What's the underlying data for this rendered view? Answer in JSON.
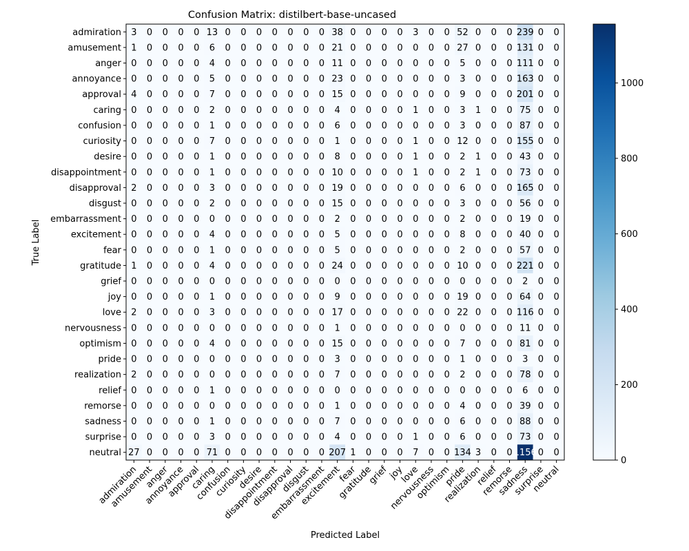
{
  "chart_data": {
    "type": "heatmap",
    "title": "Confusion Matrix: distilbert-base-uncased",
    "xlabel": "Predicted Label",
    "ylabel": "True Label",
    "labels": [
      "admiration",
      "amusement",
      "anger",
      "annoyance",
      "approval",
      "caring",
      "confusion",
      "curiosity",
      "desire",
      "disappointment",
      "disapproval",
      "disgust",
      "embarrassment",
      "excitement",
      "fear",
      "gratitude",
      "grief",
      "joy",
      "love",
      "nervousness",
      "optimism",
      "pride",
      "realization",
      "relief",
      "remorse",
      "sadness",
      "surprise",
      "neutral"
    ],
    "matrix": [
      [
        3,
        0,
        0,
        0,
        0,
        13,
        0,
        0,
        0,
        0,
        0,
        0,
        0,
        38,
        0,
        0,
        0,
        0,
        3,
        0,
        0,
        52,
        0,
        0,
        0,
        239,
        0,
        0
      ],
      [
        1,
        0,
        0,
        0,
        0,
        6,
        0,
        0,
        0,
        0,
        0,
        0,
        0,
        21,
        0,
        0,
        0,
        0,
        0,
        0,
        0,
        27,
        0,
        0,
        0,
        131,
        0,
        0
      ],
      [
        0,
        0,
        0,
        0,
        0,
        4,
        0,
        0,
        0,
        0,
        0,
        0,
        0,
        11,
        0,
        0,
        0,
        0,
        0,
        0,
        0,
        5,
        0,
        0,
        0,
        111,
        0,
        0
      ],
      [
        0,
        0,
        0,
        0,
        0,
        5,
        0,
        0,
        0,
        0,
        0,
        0,
        0,
        23,
        0,
        0,
        0,
        0,
        0,
        0,
        0,
        3,
        0,
        0,
        0,
        163,
        0,
        0
      ],
      [
        4,
        0,
        0,
        0,
        0,
        7,
        0,
        0,
        0,
        0,
        0,
        0,
        0,
        15,
        0,
        0,
        0,
        0,
        0,
        0,
        0,
        9,
        0,
        0,
        0,
        201,
        0,
        0
      ],
      [
        0,
        0,
        0,
        0,
        0,
        2,
        0,
        0,
        0,
        0,
        0,
        0,
        0,
        4,
        0,
        0,
        0,
        0,
        1,
        0,
        0,
        3,
        1,
        0,
        0,
        75,
        0,
        0
      ],
      [
        0,
        0,
        0,
        0,
        0,
        1,
        0,
        0,
        0,
        0,
        0,
        0,
        0,
        6,
        0,
        0,
        0,
        0,
        0,
        0,
        0,
        3,
        0,
        0,
        0,
        87,
        0,
        0
      ],
      [
        0,
        0,
        0,
        0,
        0,
        7,
        0,
        0,
        0,
        0,
        0,
        0,
        0,
        1,
        0,
        0,
        0,
        0,
        1,
        0,
        0,
        12,
        0,
        0,
        0,
        155,
        0,
        0
      ],
      [
        0,
        0,
        0,
        0,
        0,
        1,
        0,
        0,
        0,
        0,
        0,
        0,
        0,
        8,
        0,
        0,
        0,
        0,
        1,
        0,
        0,
        2,
        1,
        0,
        0,
        43,
        0,
        0
      ],
      [
        0,
        0,
        0,
        0,
        0,
        1,
        0,
        0,
        0,
        0,
        0,
        0,
        0,
        10,
        0,
        0,
        0,
        0,
        1,
        0,
        0,
        2,
        1,
        0,
        0,
        73,
        0,
        0
      ],
      [
        2,
        0,
        0,
        0,
        0,
        3,
        0,
        0,
        0,
        0,
        0,
        0,
        0,
        19,
        0,
        0,
        0,
        0,
        0,
        0,
        0,
        6,
        0,
        0,
        0,
        165,
        0,
        0
      ],
      [
        0,
        0,
        0,
        0,
        0,
        2,
        0,
        0,
        0,
        0,
        0,
        0,
        0,
        15,
        0,
        0,
        0,
        0,
        0,
        0,
        0,
        3,
        0,
        0,
        0,
        56,
        0,
        0
      ],
      [
        0,
        0,
        0,
        0,
        0,
        0,
        0,
        0,
        0,
        0,
        0,
        0,
        0,
        2,
        0,
        0,
        0,
        0,
        0,
        0,
        0,
        2,
        0,
        0,
        0,
        19,
        0,
        0
      ],
      [
        0,
        0,
        0,
        0,
        0,
        4,
        0,
        0,
        0,
        0,
        0,
        0,
        0,
        5,
        0,
        0,
        0,
        0,
        0,
        0,
        0,
        8,
        0,
        0,
        0,
        40,
        0,
        0
      ],
      [
        0,
        0,
        0,
        0,
        0,
        1,
        0,
        0,
        0,
        0,
        0,
        0,
        0,
        5,
        0,
        0,
        0,
        0,
        0,
        0,
        0,
        2,
        0,
        0,
        0,
        57,
        0,
        0
      ],
      [
        1,
        0,
        0,
        0,
        0,
        4,
        0,
        0,
        0,
        0,
        0,
        0,
        0,
        24,
        0,
        0,
        0,
        0,
        0,
        0,
        0,
        10,
        0,
        0,
        0,
        221,
        0,
        0
      ],
      [
        0,
        0,
        0,
        0,
        0,
        0,
        0,
        0,
        0,
        0,
        0,
        0,
        0,
        0,
        0,
        0,
        0,
        0,
        0,
        0,
        0,
        0,
        0,
        0,
        0,
        2,
        0,
        0
      ],
      [
        0,
        0,
        0,
        0,
        0,
        1,
        0,
        0,
        0,
        0,
        0,
        0,
        0,
        9,
        0,
        0,
        0,
        0,
        0,
        0,
        0,
        19,
        0,
        0,
        0,
        64,
        0,
        0
      ],
      [
        2,
        0,
        0,
        0,
        0,
        3,
        0,
        0,
        0,
        0,
        0,
        0,
        0,
        17,
        0,
        0,
        0,
        0,
        0,
        0,
        0,
        22,
        0,
        0,
        0,
        116,
        0,
        0
      ],
      [
        0,
        0,
        0,
        0,
        0,
        0,
        0,
        0,
        0,
        0,
        0,
        0,
        0,
        1,
        0,
        0,
        0,
        0,
        0,
        0,
        0,
        0,
        0,
        0,
        0,
        11,
        0,
        0
      ],
      [
        0,
        0,
        0,
        0,
        0,
        4,
        0,
        0,
        0,
        0,
        0,
        0,
        0,
        15,
        0,
        0,
        0,
        0,
        0,
        0,
        0,
        7,
        0,
        0,
        0,
        81,
        0,
        0
      ],
      [
        0,
        0,
        0,
        0,
        0,
        0,
        0,
        0,
        0,
        0,
        0,
        0,
        0,
        3,
        0,
        0,
        0,
        0,
        0,
        0,
        0,
        1,
        0,
        0,
        0,
        3,
        0,
        0
      ],
      [
        2,
        0,
        0,
        0,
        0,
        0,
        0,
        0,
        0,
        0,
        0,
        0,
        0,
        7,
        0,
        0,
        0,
        0,
        0,
        0,
        0,
        2,
        0,
        0,
        0,
        78,
        0,
        0
      ],
      [
        0,
        0,
        0,
        0,
        0,
        1,
        0,
        0,
        0,
        0,
        0,
        0,
        0,
        0,
        0,
        0,
        0,
        0,
        0,
        0,
        0,
        0,
        0,
        0,
        0,
        6,
        0,
        0
      ],
      [
        0,
        0,
        0,
        0,
        0,
        0,
        0,
        0,
        0,
        0,
        0,
        0,
        0,
        1,
        0,
        0,
        0,
        0,
        0,
        0,
        0,
        4,
        0,
        0,
        0,
        39,
        0,
        0
      ],
      [
        0,
        0,
        0,
        0,
        0,
        1,
        0,
        0,
        0,
        0,
        0,
        0,
        0,
        7,
        0,
        0,
        0,
        0,
        0,
        0,
        0,
        6,
        0,
        0,
        0,
        88,
        0,
        0
      ],
      [
        0,
        0,
        0,
        0,
        0,
        3,
        0,
        0,
        0,
        0,
        0,
        0,
        0,
        4,
        0,
        0,
        0,
        0,
        1,
        0,
        0,
        6,
        0,
        0,
        0,
        73,
        0,
        0
      ],
      [
        27,
        0,
        0,
        0,
        0,
        71,
        0,
        0,
        0,
        0,
        0,
        0,
        0,
        207,
        1,
        0,
        0,
        0,
        7,
        0,
        0,
        134,
        3,
        0,
        0,
        1156,
        0,
        0
      ]
    ],
    "vmin": 0,
    "vmax": 1156,
    "colormap": "Blues",
    "colorbar_ticks": [
      0,
      200,
      400,
      600,
      800,
      1000
    ],
    "grid": false,
    "legend": "colorbar-right"
  }
}
